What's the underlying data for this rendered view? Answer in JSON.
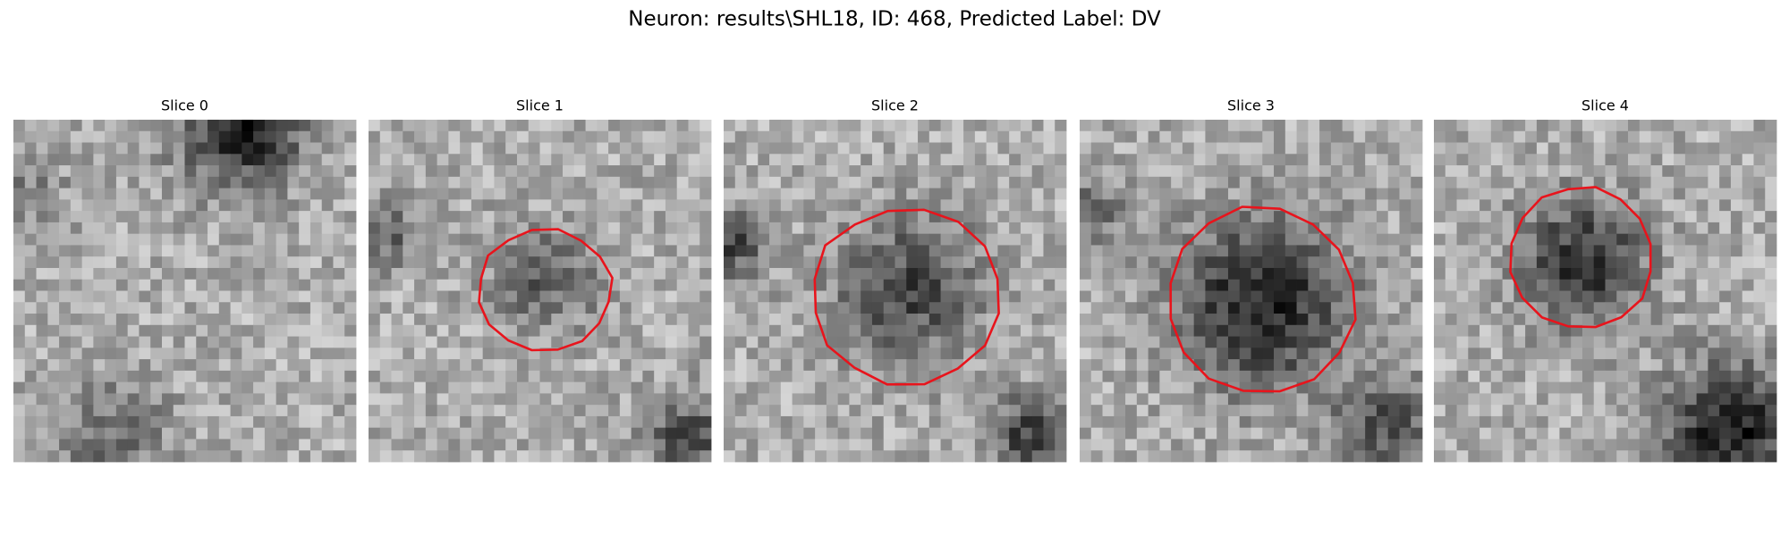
{
  "header": {
    "title": "Neuron: results\\SHL18, ID: 468, Predicted Label: DV"
  },
  "panels": [
    {
      "title": "Slice 0"
    },
    {
      "title": "Slice 1"
    },
    {
      "title": "Slice 2"
    },
    {
      "title": "Slice 3"
    },
    {
      "title": "Slice 4"
    }
  ]
}
